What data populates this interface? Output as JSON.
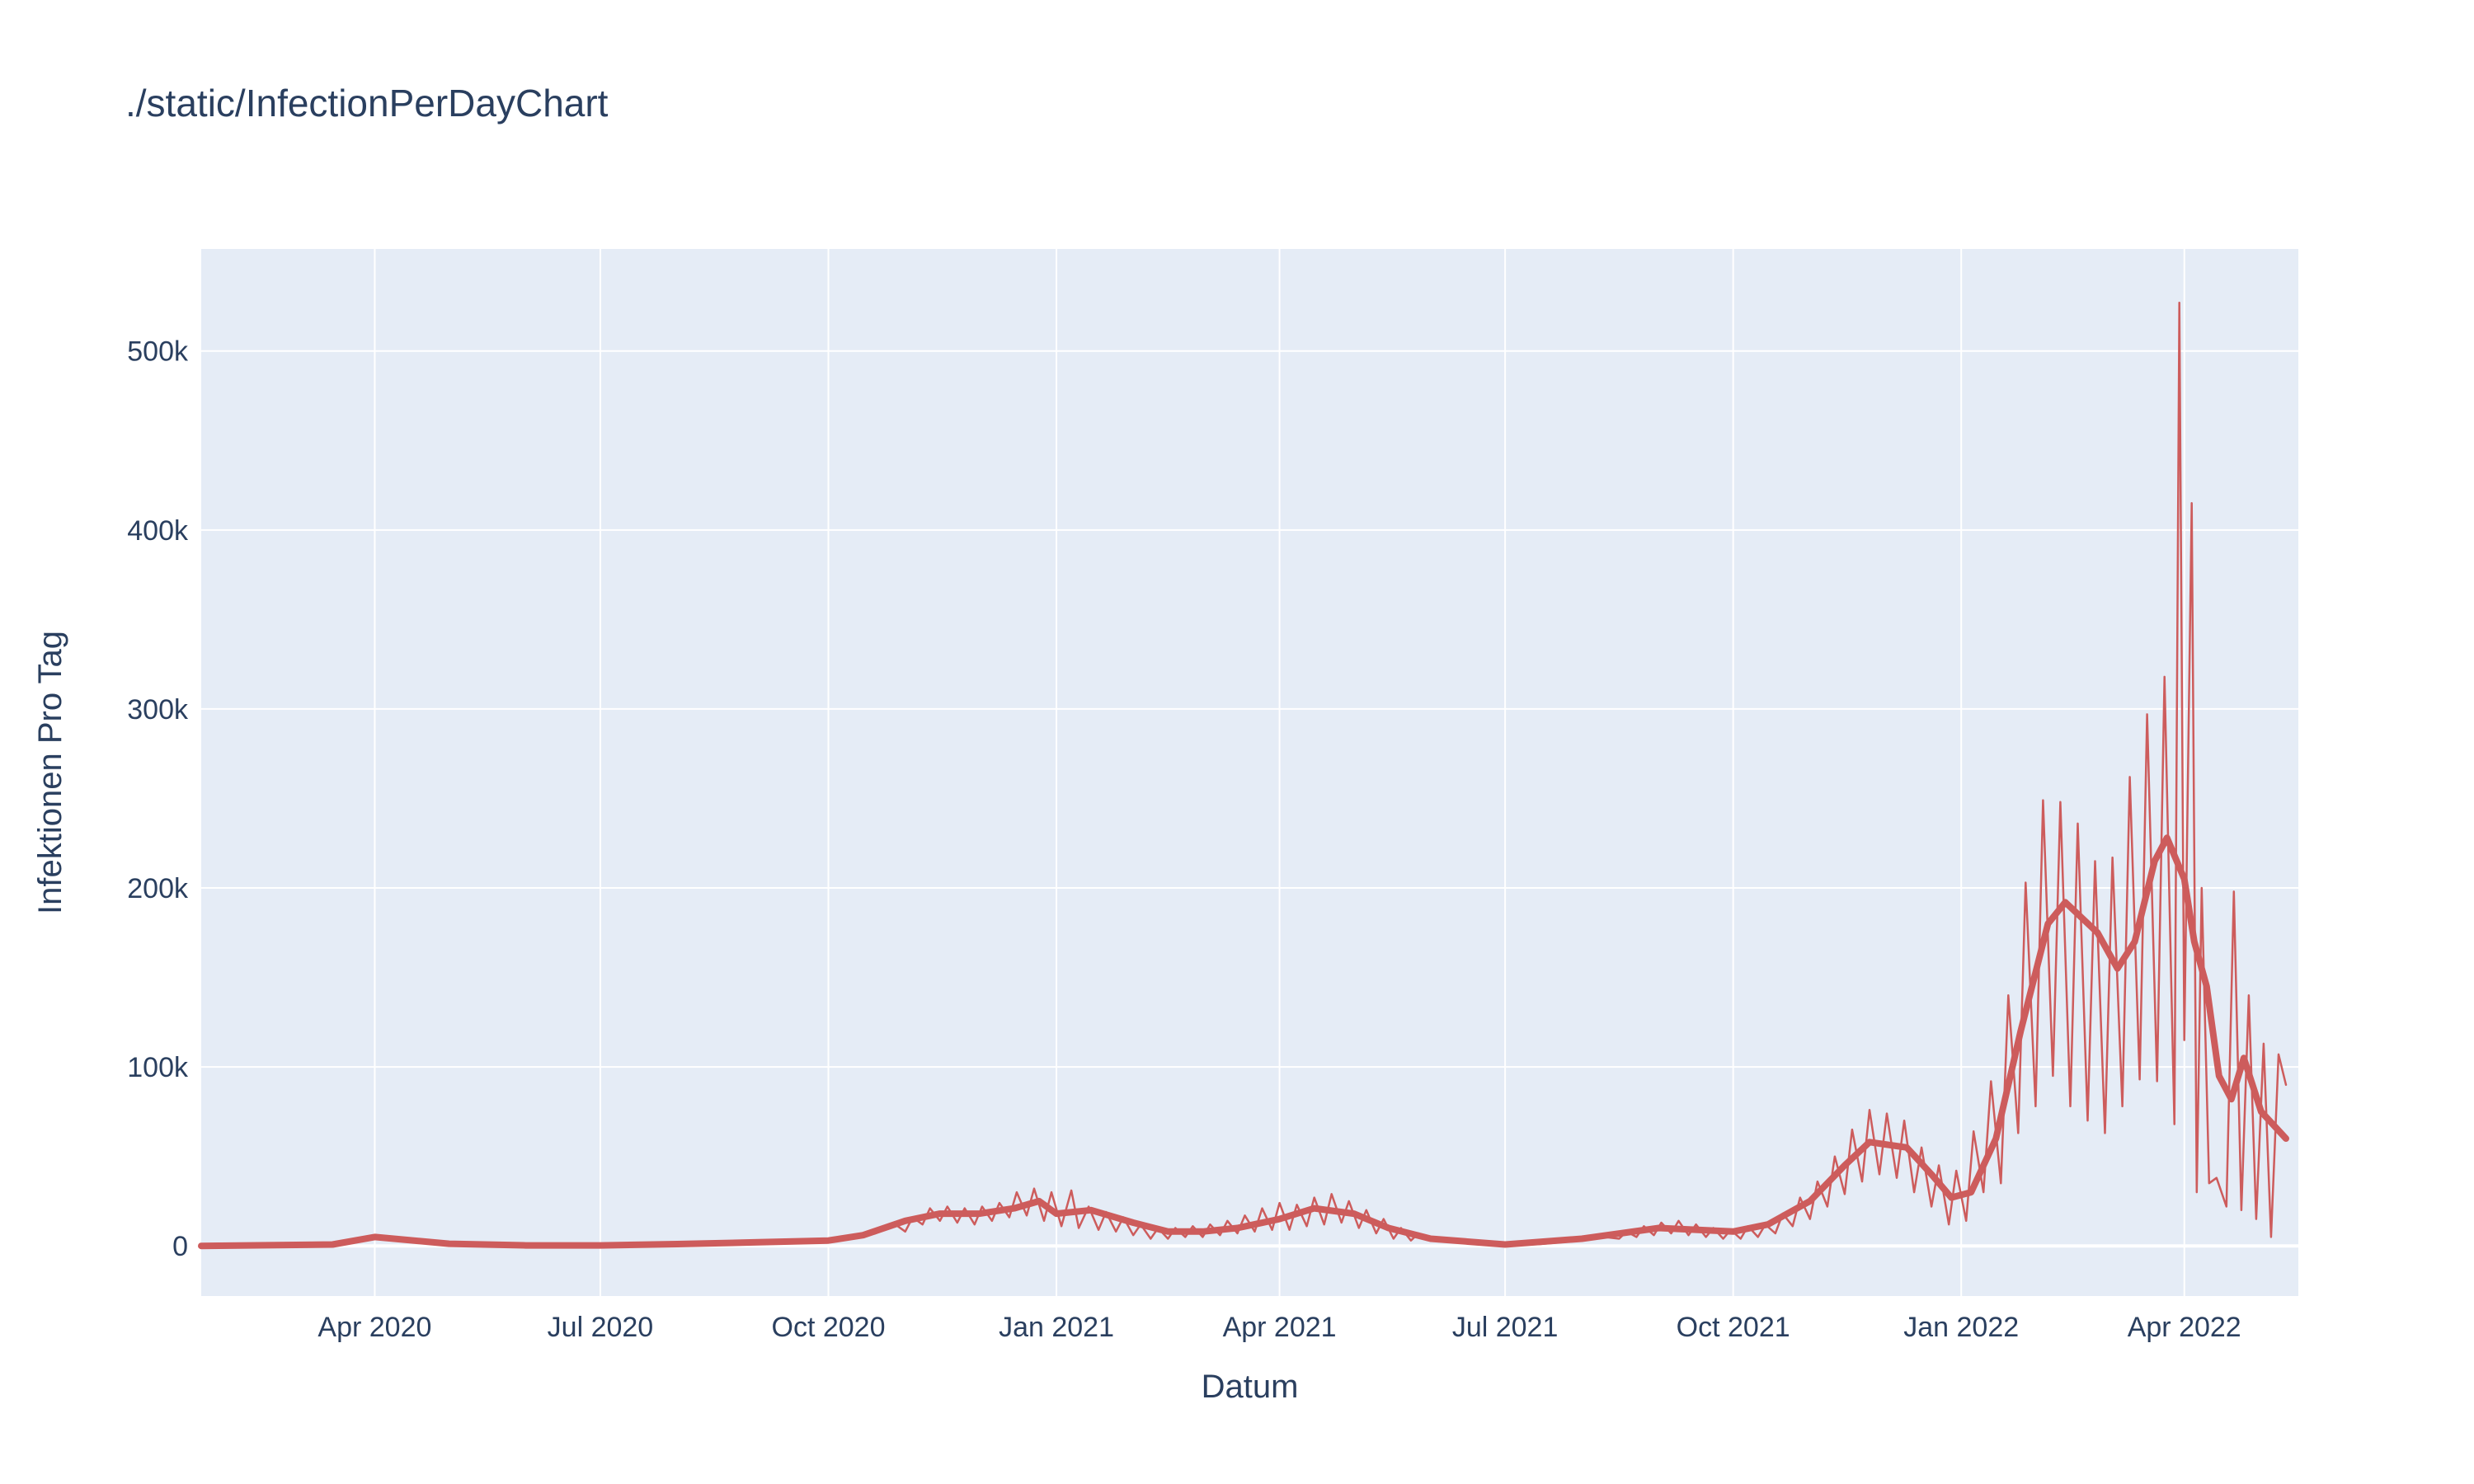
{
  "chart_data": {
    "type": "line",
    "title": "./static/InfectionPerDayChart",
    "xlabel": "Datum",
    "ylabel": "Infektionen Pro Tag",
    "xlim": [
      "2020-01-22",
      "2022-05-17"
    ],
    "ylim": [
      -28000,
      557000
    ],
    "x_ticks": [
      {
        "date": "2020-04-01",
        "label": "Apr 2020"
      },
      {
        "date": "2020-07-01",
        "label": "Jul 2020"
      },
      {
        "date": "2020-10-01",
        "label": "Oct 2020"
      },
      {
        "date": "2021-01-01",
        "label": "Jan 2021"
      },
      {
        "date": "2021-04-01",
        "label": "Apr 2021"
      },
      {
        "date": "2021-07-01",
        "label": "Jul 2021"
      },
      {
        "date": "2021-10-01",
        "label": "Oct 2021"
      },
      {
        "date": "2022-01-01",
        "label": "Jan 2022"
      },
      {
        "date": "2022-04-01",
        "label": "Apr 2022"
      }
    ],
    "y_ticks": [
      {
        "value": 0,
        "label": "0"
      },
      {
        "value": 100000,
        "label": "100k"
      },
      {
        "value": 200000,
        "label": "200k"
      },
      {
        "value": 300000,
        "label": "300k"
      },
      {
        "value": 400000,
        "label": "400k"
      },
      {
        "value": 500000,
        "label": "500k"
      }
    ],
    "grid": true,
    "legend": "none",
    "colors": {
      "line": "#cd5c5c",
      "plot_bg": "#e5ecf6",
      "grid": "#ffffff",
      "text": "#2a3f5f"
    },
    "series": [
      {
        "style": "thin",
        "points": [
          [
            "2020-01-22",
            0
          ],
          [
            "2020-03-15",
            800
          ],
          [
            "2020-04-01",
            6000
          ],
          [
            "2020-05-01",
            1500
          ],
          [
            "2020-06-01",
            500
          ],
          [
            "2020-07-01",
            400
          ],
          [
            "2020-08-01",
            1200
          ],
          [
            "2020-09-01",
            2000
          ],
          [
            "2020-10-01",
            2500
          ],
          [
            "2020-10-10",
            4000
          ],
          [
            "2020-10-20",
            7000
          ],
          [
            "2020-10-28",
            12000
          ],
          [
            "2020-11-01",
            8000
          ],
          [
            "2020-11-04",
            16000
          ],
          [
            "2020-11-08",
            12000
          ],
          [
            "2020-11-11",
            21000
          ],
          [
            "2020-11-15",
            14000
          ],
          [
            "2020-11-18",
            22000
          ],
          [
            "2020-11-22",
            13000
          ],
          [
            "2020-11-25",
            21000
          ],
          [
            "2020-11-29",
            12000
          ],
          [
            "2020-12-02",
            22000
          ],
          [
            "2020-12-06",
            14000
          ],
          [
            "2020-12-09",
            24000
          ],
          [
            "2020-12-13",
            16000
          ],
          [
            "2020-12-16",
            30000
          ],
          [
            "2020-12-20",
            17000
          ],
          [
            "2020-12-23",
            32000
          ],
          [
            "2020-12-27",
            14000
          ],
          [
            "2020-12-30",
            30000
          ],
          [
            "2021-01-03",
            11000
          ],
          [
            "2021-01-07",
            31000
          ],
          [
            "2021-01-10",
            10000
          ],
          [
            "2021-01-14",
            22000
          ],
          [
            "2021-01-18",
            9000
          ],
          [
            "2021-01-21",
            19000
          ],
          [
            "2021-01-25",
            8000
          ],
          [
            "2021-01-28",
            16000
          ],
          [
            "2021-02-01",
            6000
          ],
          [
            "2021-02-04",
            12000
          ],
          [
            "2021-02-08",
            4000
          ],
          [
            "2021-02-11",
            10000
          ],
          [
            "2021-02-15",
            4000
          ],
          [
            "2021-02-18",
            10000
          ],
          [
            "2021-02-22",
            5000
          ],
          [
            "2021-02-25",
            11000
          ],
          [
            "2021-03-01",
            5000
          ],
          [
            "2021-03-04",
            12000
          ],
          [
            "2021-03-08",
            6000
          ],
          [
            "2021-03-11",
            14000
          ],
          [
            "2021-03-15",
            7000
          ],
          [
            "2021-03-18",
            17000
          ],
          [
            "2021-03-22",
            8000
          ],
          [
            "2021-03-25",
            21000
          ],
          [
            "2021-03-29",
            9000
          ],
          [
            "2021-04-01",
            24000
          ],
          [
            "2021-04-05",
            9000
          ],
          [
            "2021-04-08",
            23000
          ],
          [
            "2021-04-12",
            11000
          ],
          [
            "2021-04-15",
            27000
          ],
          [
            "2021-04-19",
            12000
          ],
          [
            "2021-04-22",
            29000
          ],
          [
            "2021-04-26",
            13000
          ],
          [
            "2021-04-29",
            25000
          ],
          [
            "2021-05-03",
            10000
          ],
          [
            "2021-05-06",
            20000
          ],
          [
            "2021-05-10",
            7000
          ],
          [
            "2021-05-13",
            15000
          ],
          [
            "2021-05-17",
            4000
          ],
          [
            "2021-05-20",
            10000
          ],
          [
            "2021-05-24",
            3000
          ],
          [
            "2021-05-27",
            7000
          ],
          [
            "2021-06-01",
            3000
          ],
          [
            "2021-06-15",
            1500
          ],
          [
            "2021-07-01",
            800
          ],
          [
            "2021-07-15",
            1000
          ],
          [
            "2021-08-01",
            3000
          ],
          [
            "2021-08-10",
            5000
          ],
          [
            "2021-08-16",
            4000
          ],
          [
            "2021-08-19",
            8000
          ],
          [
            "2021-08-23",
            5000
          ],
          [
            "2021-08-26",
            11000
          ],
          [
            "2021-08-30",
            6000
          ],
          [
            "2021-09-02",
            13000
          ],
          [
            "2021-09-06",
            7000
          ],
          [
            "2021-09-09",
            14000
          ],
          [
            "2021-09-13",
            6000
          ],
          [
            "2021-09-16",
            12000
          ],
          [
            "2021-09-20",
            5000
          ],
          [
            "2021-09-23",
            10000
          ],
          [
            "2021-09-27",
            4000
          ],
          [
            "2021-09-30",
            9000
          ],
          [
            "2021-10-04",
            4000
          ],
          [
            "2021-10-07",
            11000
          ],
          [
            "2021-10-11",
            5000
          ],
          [
            "2021-10-14",
            12000
          ],
          [
            "2021-10-18",
            7000
          ],
          [
            "2021-10-21",
            18000
          ],
          [
            "2021-10-25",
            11000
          ],
          [
            "2021-10-28",
            27000
          ],
          [
            "2021-11-01",
            15000
          ],
          [
            "2021-11-04",
            36000
          ],
          [
            "2021-11-08",
            22000
          ],
          [
            "2021-11-11",
            50000
          ],
          [
            "2021-11-15",
            29000
          ],
          [
            "2021-11-18",
            65000
          ],
          [
            "2021-11-22",
            36000
          ],
          [
            "2021-11-25",
            76000
          ],
          [
            "2021-11-29",
            40000
          ],
          [
            "2021-12-02",
            74000
          ],
          [
            "2021-12-06",
            38000
          ],
          [
            "2021-12-09",
            70000
          ],
          [
            "2021-12-13",
            30000
          ],
          [
            "2021-12-16",
            55000
          ],
          [
            "2021-12-20",
            22000
          ],
          [
            "2021-12-23",
            45000
          ],
          [
            "2021-12-27",
            12000
          ],
          [
            "2021-12-30",
            42000
          ],
          [
            "2022-01-03",
            14000
          ],
          [
            "2022-01-06",
            64000
          ],
          [
            "2022-01-10",
            30000
          ],
          [
            "2022-01-13",
            92000
          ],
          [
            "2022-01-17",
            35000
          ],
          [
            "2022-01-20",
            140000
          ],
          [
            "2022-01-24",
            63000
          ],
          [
            "2022-01-27",
            203000
          ],
          [
            "2022-01-31",
            78000
          ],
          [
            "2022-02-03",
            249000
          ],
          [
            "2022-02-07",
            95000
          ],
          [
            "2022-02-10",
            248000
          ],
          [
            "2022-02-14",
            78000
          ],
          [
            "2022-02-17",
            236000
          ],
          [
            "2022-02-21",
            70000
          ],
          [
            "2022-02-24",
            215000
          ],
          [
            "2022-02-28",
            63000
          ],
          [
            "2022-03-03",
            217000
          ],
          [
            "2022-03-07",
            78000
          ],
          [
            "2022-03-10",
            262000
          ],
          [
            "2022-03-14",
            93000
          ],
          [
            "2022-03-17",
            297000
          ],
          [
            "2022-03-21",
            92000
          ],
          [
            "2022-03-24",
            318000
          ],
          [
            "2022-03-28",
            68000
          ],
          [
            "2022-03-30",
            527000
          ],
          [
            "2022-04-01",
            115000
          ],
          [
            "2022-04-04",
            415000
          ],
          [
            "2022-04-06",
            30000
          ],
          [
            "2022-04-08",
            200000
          ],
          [
            "2022-04-11",
            35000
          ],
          [
            "2022-04-14",
            38000
          ],
          [
            "2022-04-18",
            22000
          ],
          [
            "2022-04-21",
            198000
          ],
          [
            "2022-04-24",
            20000
          ],
          [
            "2022-04-27",
            140000
          ],
          [
            "2022-04-30",
            15000
          ],
          [
            "2022-05-03",
            113000
          ],
          [
            "2022-05-06",
            5000
          ],
          [
            "2022-05-09",
            107000
          ],
          [
            "2022-05-12",
            90000
          ]
        ]
      },
      {
        "style": "thick",
        "points": [
          [
            "2020-01-22",
            0
          ],
          [
            "2020-03-15",
            800
          ],
          [
            "2020-04-01",
            5000
          ],
          [
            "2020-05-01",
            1200
          ],
          [
            "2020-06-01",
            300
          ],
          [
            "2020-07-01",
            300
          ],
          [
            "2020-08-01",
            1000
          ],
          [
            "2020-09-01",
            2000
          ],
          [
            "2020-10-01",
            3000
          ],
          [
            "2020-10-15",
            6000
          ],
          [
            "2020-11-01",
            14000
          ],
          [
            "2020-11-15",
            18000
          ],
          [
            "2020-12-01",
            18000
          ],
          [
            "2020-12-15",
            21000
          ],
          [
            "2020-12-25",
            25000
          ],
          [
            "2021-01-01",
            18000
          ],
          [
            "2021-01-15",
            20000
          ],
          [
            "2021-02-01",
            13000
          ],
          [
            "2021-02-15",
            8000
          ],
          [
            "2021-03-01",
            8000
          ],
          [
            "2021-03-15",
            10000
          ],
          [
            "2021-04-01",
            15000
          ],
          [
            "2021-04-15",
            21000
          ],
          [
            "2021-05-01",
            18000
          ],
          [
            "2021-05-15",
            10000
          ],
          [
            "2021-06-01",
            4000
          ],
          [
            "2021-07-01",
            800
          ],
          [
            "2021-08-01",
            4000
          ],
          [
            "2021-09-01",
            10000
          ],
          [
            "2021-10-01",
            8000
          ],
          [
            "2021-10-15",
            12000
          ],
          [
            "2021-11-01",
            25000
          ],
          [
            "2021-11-15",
            45000
          ],
          [
            "2021-11-25",
            58000
          ],
          [
            "2021-12-10",
            55000
          ],
          [
            "2021-12-20",
            40000
          ],
          [
            "2021-12-28",
            27000
          ],
          [
            "2022-01-05",
            30000
          ],
          [
            "2022-01-15",
            60000
          ],
          [
            "2022-01-25",
            120000
          ],
          [
            "2022-02-05",
            180000
          ],
          [
            "2022-02-12",
            192000
          ],
          [
            "2022-02-25",
            175000
          ],
          [
            "2022-03-05",
            155000
          ],
          [
            "2022-03-12",
            170000
          ],
          [
            "2022-03-20",
            215000
          ],
          [
            "2022-03-25",
            228000
          ],
          [
            "2022-04-01",
            205000
          ],
          [
            "2022-04-05",
            170000
          ],
          [
            "2022-04-10",
            145000
          ],
          [
            "2022-04-15",
            95000
          ],
          [
            "2022-04-20",
            82000
          ],
          [
            "2022-04-25",
            105000
          ],
          [
            "2022-05-02",
            75000
          ],
          [
            "2022-05-12",
            60000
          ]
        ]
      }
    ]
  }
}
